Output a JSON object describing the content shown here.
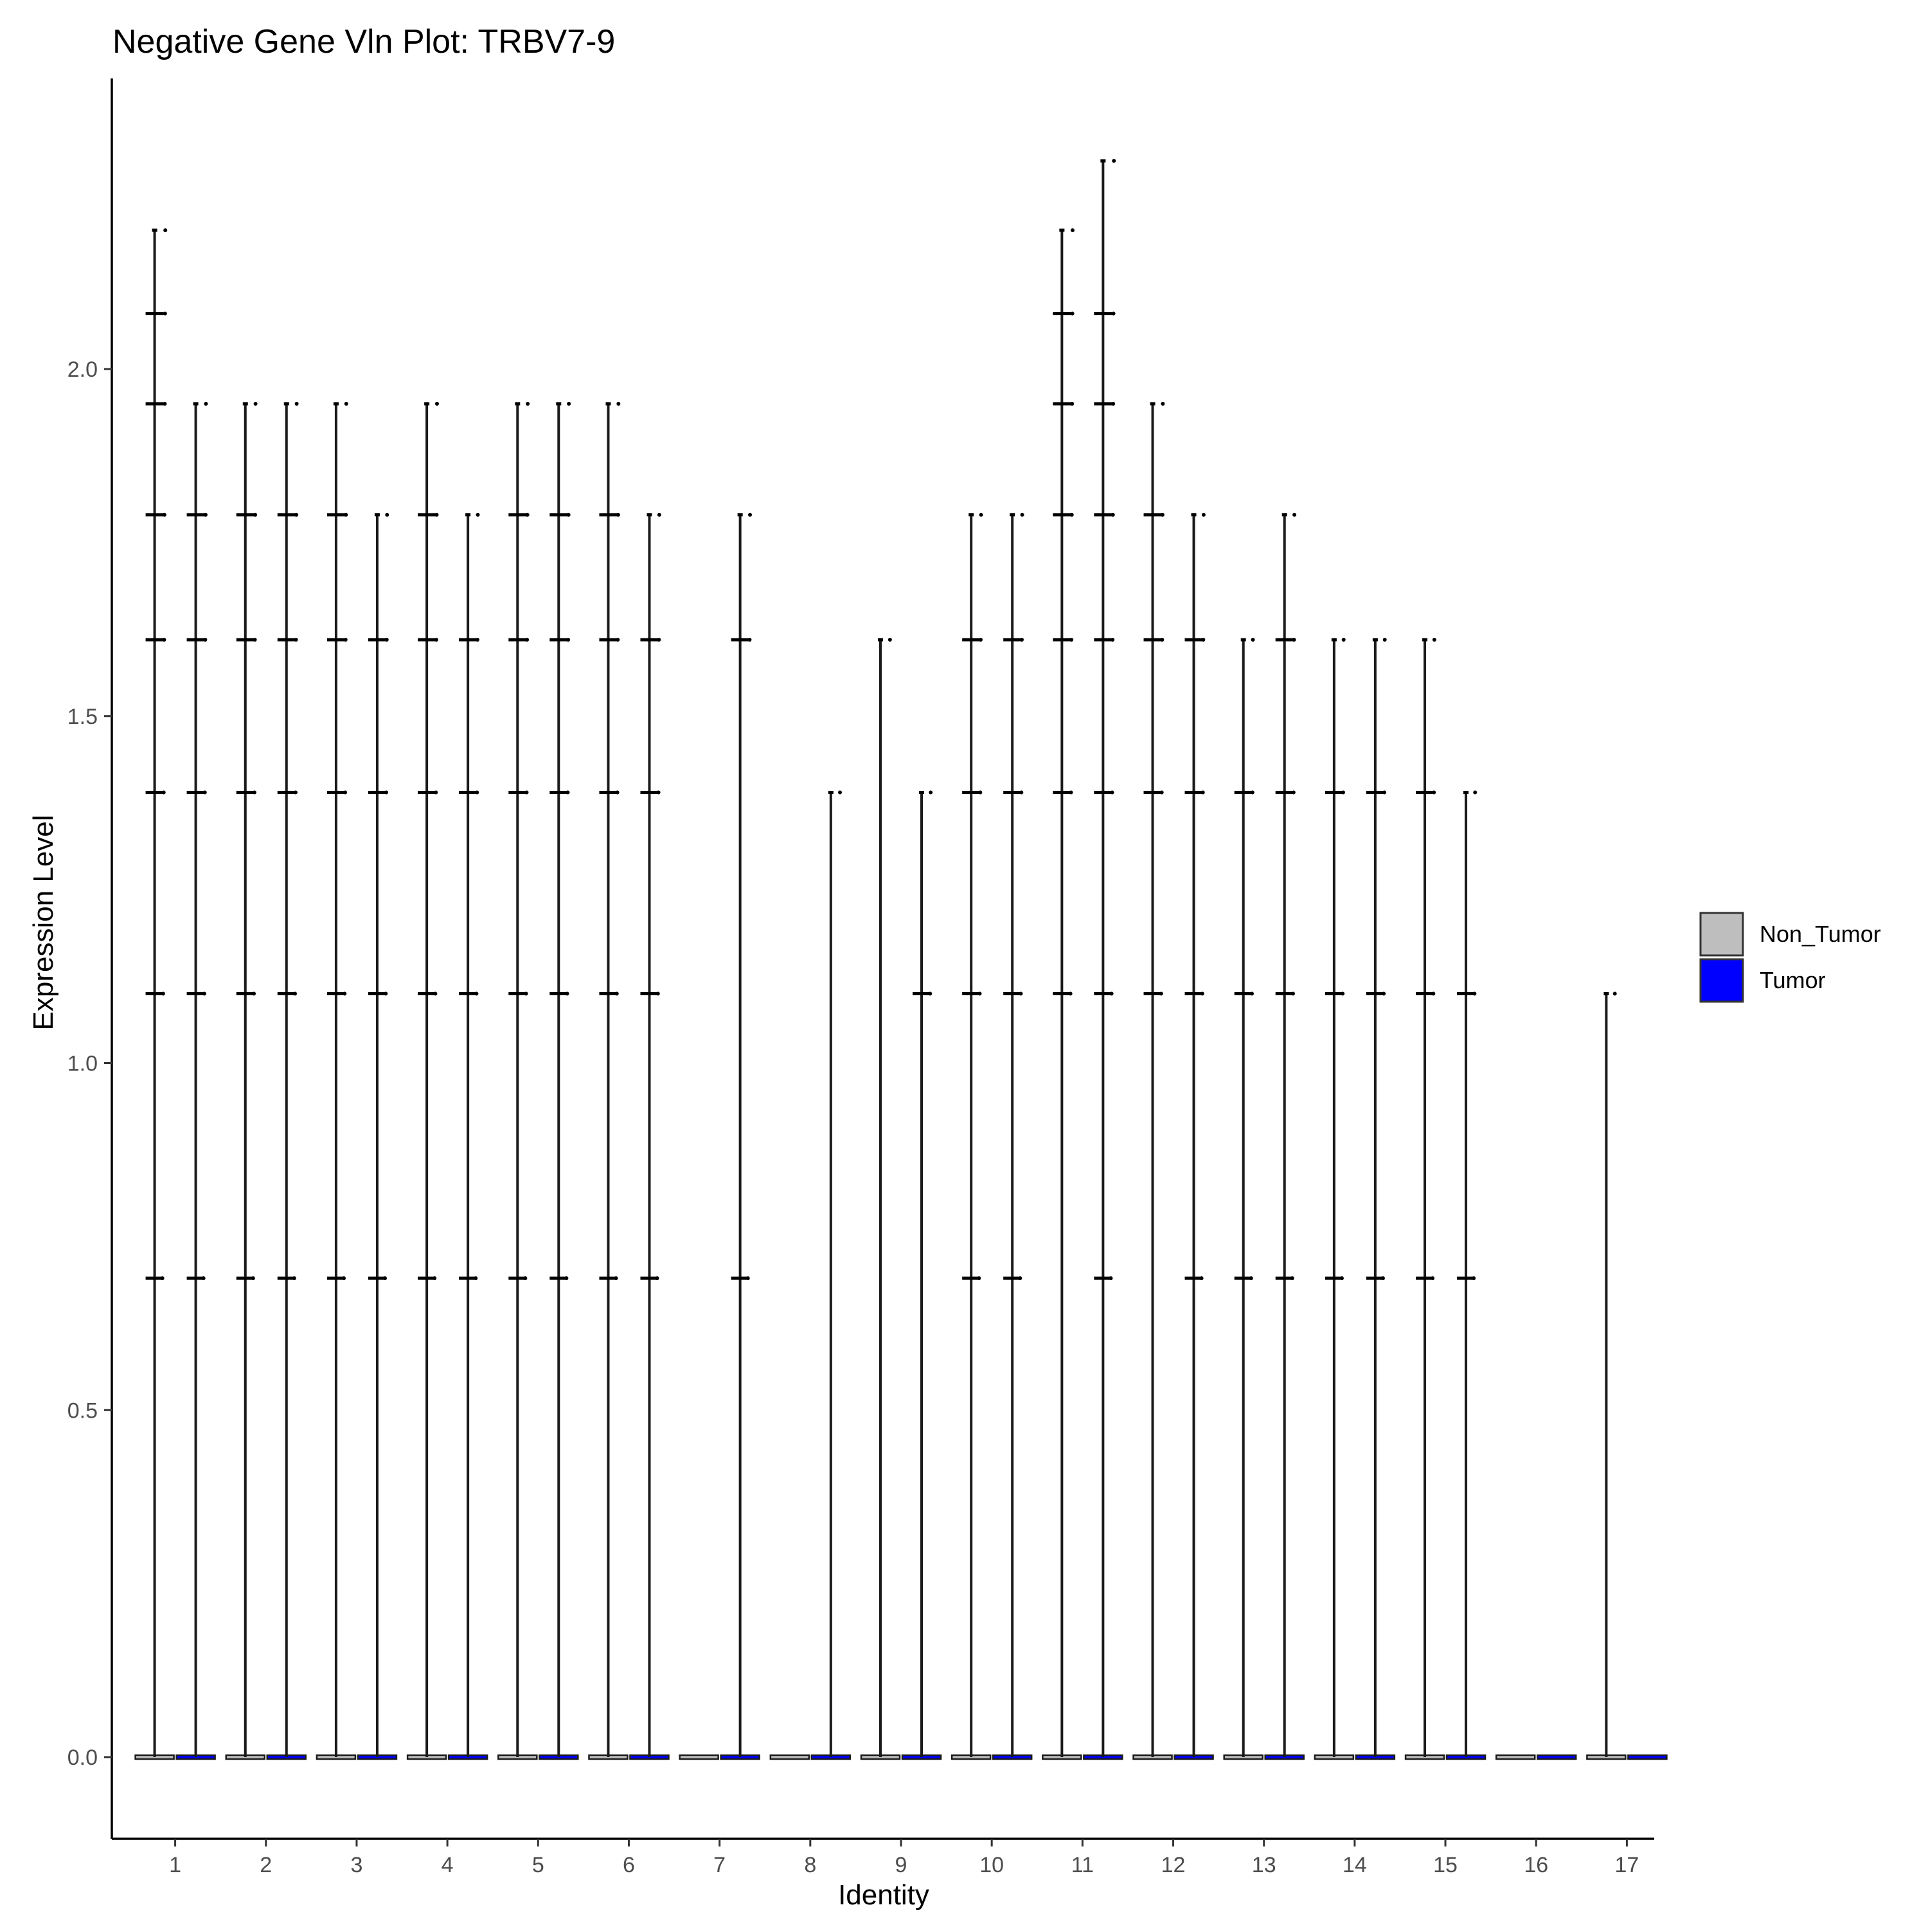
{
  "chart_data": {
    "type": "violin",
    "title": "Negative Gene Vln Plot: TRBV7-9",
    "xlabel": "Identity",
    "ylabel": "Expression Level",
    "ylim": [
      -0.12,
      2.45
    ],
    "yticks": [
      "0.0",
      "0.5",
      "1.0",
      "1.5",
      "2.0"
    ],
    "ytick_values": [
      0.0,
      0.5,
      1.0,
      1.5,
      2.0
    ],
    "categories": [
      "1",
      "2",
      "3",
      "4",
      "5",
      "6",
      "7",
      "8",
      "9",
      "10",
      "11",
      "12",
      "13",
      "14",
      "15",
      "16",
      "17"
    ],
    "grid": false,
    "legend_position": "right",
    "series": [
      {
        "name": "Non_Tumor",
        "color": "#BEBEBE",
        "max_values": [
          2.2,
          1.95,
          1.95,
          1.95,
          1.95,
          1.95,
          0.0,
          0.0,
          1.61,
          1.79,
          2.2,
          1.95,
          1.61,
          1.61,
          1.61,
          0.0,
          1.1
        ],
        "levels": [
          [
            0.69,
            1.1,
            1.39,
            1.61,
            1.79,
            1.95,
            2.08,
            2.2
          ],
          [
            0.69,
            1.1,
            1.39,
            1.61,
            1.79,
            1.95
          ],
          [
            0.69,
            1.1,
            1.39,
            1.61,
            1.79,
            1.95
          ],
          [
            0.69,
            1.1,
            1.39,
            1.61,
            1.79,
            1.95
          ],
          [
            0.69,
            1.1,
            1.39,
            1.61,
            1.79,
            1.95
          ],
          [
            0.69,
            1.1,
            1.39,
            1.61,
            1.79,
            1.95
          ],
          [],
          [],
          [
            1.61
          ],
          [
            0.69,
            1.1,
            1.39,
            1.61,
            1.79
          ],
          [
            1.1,
            1.39,
            1.61,
            1.79,
            1.95,
            2.08,
            2.2
          ],
          [
            1.1,
            1.39,
            1.61,
            1.79,
            1.95
          ],
          [
            0.69,
            1.1,
            1.39,
            1.61
          ],
          [
            0.69,
            1.1,
            1.39,
            1.61
          ],
          [
            0.69,
            1.1,
            1.39,
            1.61
          ],
          [],
          [
            1.1
          ]
        ]
      },
      {
        "name": "Tumor",
        "color": "#0000FF",
        "max_values": [
          1.95,
          1.95,
          1.79,
          1.79,
          1.95,
          1.79,
          1.79,
          1.39,
          1.39,
          1.79,
          2.3,
          1.79,
          1.79,
          1.61,
          1.39,
          0.0,
          0.0
        ],
        "levels": [
          [
            0.69,
            1.1,
            1.39,
            1.61,
            1.79,
            1.95
          ],
          [
            0.69,
            1.1,
            1.39,
            1.61,
            1.79,
            1.95
          ],
          [
            0.69,
            1.1,
            1.39,
            1.61,
            1.79
          ],
          [
            0.69,
            1.1,
            1.39,
            1.61,
            1.79
          ],
          [
            0.69,
            1.1,
            1.39,
            1.61,
            1.79,
            1.95
          ],
          [
            0.69,
            1.1,
            1.39,
            1.61,
            1.79
          ],
          [
            0.69,
            1.61,
            1.79
          ],
          [
            1.39
          ],
          [
            1.1,
            1.39
          ],
          [
            0.69,
            1.1,
            1.39,
            1.61,
            1.79
          ],
          [
            0.69,
            1.1,
            1.39,
            1.61,
            1.79,
            1.95,
            2.08,
            2.3
          ],
          [
            0.69,
            1.1,
            1.39,
            1.61,
            1.79
          ],
          [
            0.69,
            1.1,
            1.39,
            1.61,
            1.79
          ],
          [
            0.69,
            1.1,
            1.39,
            1.61
          ],
          [
            0.69,
            1.1,
            1.39
          ],
          [],
          []
        ]
      }
    ]
  }
}
